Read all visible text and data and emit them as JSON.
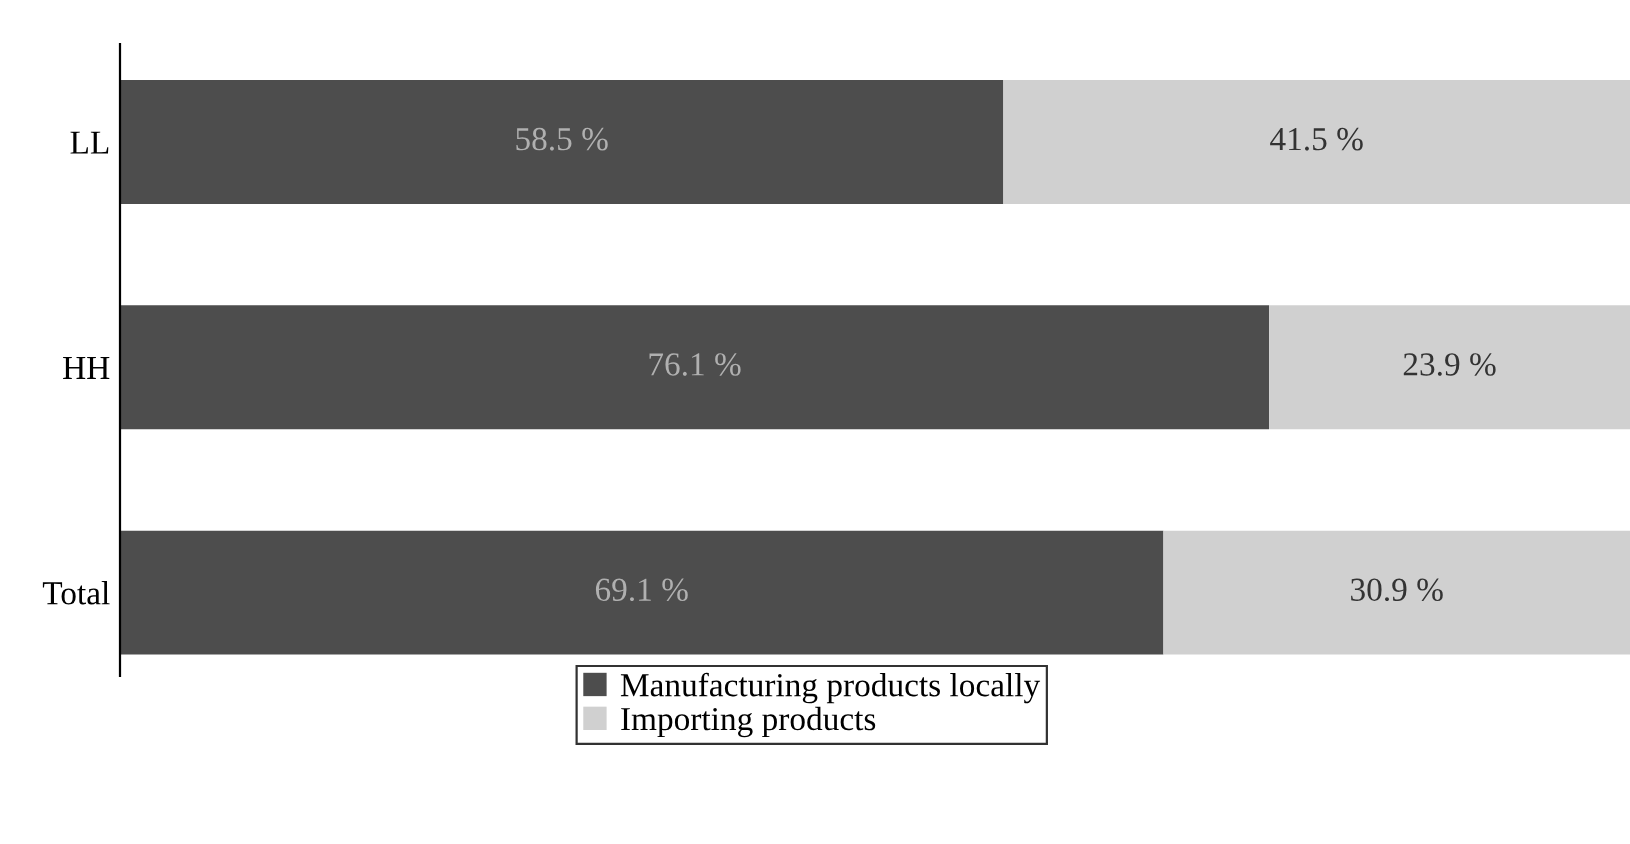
{
  "chart_data": {
    "type": "bar",
    "orientation": "horizontal",
    "stacked": true,
    "categories": [
      "LL",
      "HH",
      "Total"
    ],
    "series": [
      {
        "name": "Manufacturing products locally",
        "color": "#4d4d4d",
        "values": [
          58.5,
          76.1,
          69.1
        ],
        "value_labels": [
          "58.5 %",
          "76.1 %",
          "69.1 %"
        ]
      },
      {
        "name": "Importing products",
        "color": "#d0d0d0",
        "values": [
          41.5,
          23.9,
          30.9
        ],
        "value_labels": [
          "41.5 %",
          "23.9 %",
          "30.9 %"
        ]
      }
    ],
    "xlim": [
      0,
      100
    ],
    "tick_labels": "y",
    "legend": "bottom",
    "grid": false
  }
}
